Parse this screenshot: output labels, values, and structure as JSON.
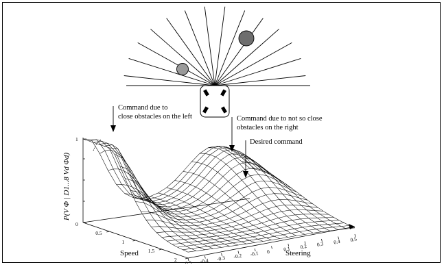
{
  "annotations": {
    "left_obstacles_line1": "Command due to",
    "left_obstacles_line2": "close obstacles on the left",
    "right_obstacles_line1": "Command due to not so close",
    "right_obstacles_line2": "obstacles on the right",
    "desired_command": "Desired command"
  },
  "axes": {
    "z_label": "P(V Φ | D1...8 Vd Φd)",
    "z_ticks": [
      "0",
      "1"
    ],
    "speed_label": "Speed",
    "speed_ticks": [
      "0.5",
      "1",
      "1.5",
      "2"
    ],
    "steering_label": "Steering",
    "steering_ticks": [
      "-0.5",
      "-0.4",
      "-0.3",
      "-0.2",
      "-0.1",
      "0",
      "0.1",
      "0.2",
      "0.3",
      "0.4",
      "0.5"
    ]
  },
  "scene": {
    "sensor_ray_count": 14,
    "obstacles": [
      {
        "side": "left",
        "distance": "close",
        "color": "#9a9a9a"
      },
      {
        "side": "right",
        "distance": "not so close",
        "color": "#6e6e6e"
      }
    ],
    "robot_wheel_color": "#000000"
  },
  "surface": {
    "grid_steering_steps": 20,
    "grid_speed_steps": 20
  }
}
